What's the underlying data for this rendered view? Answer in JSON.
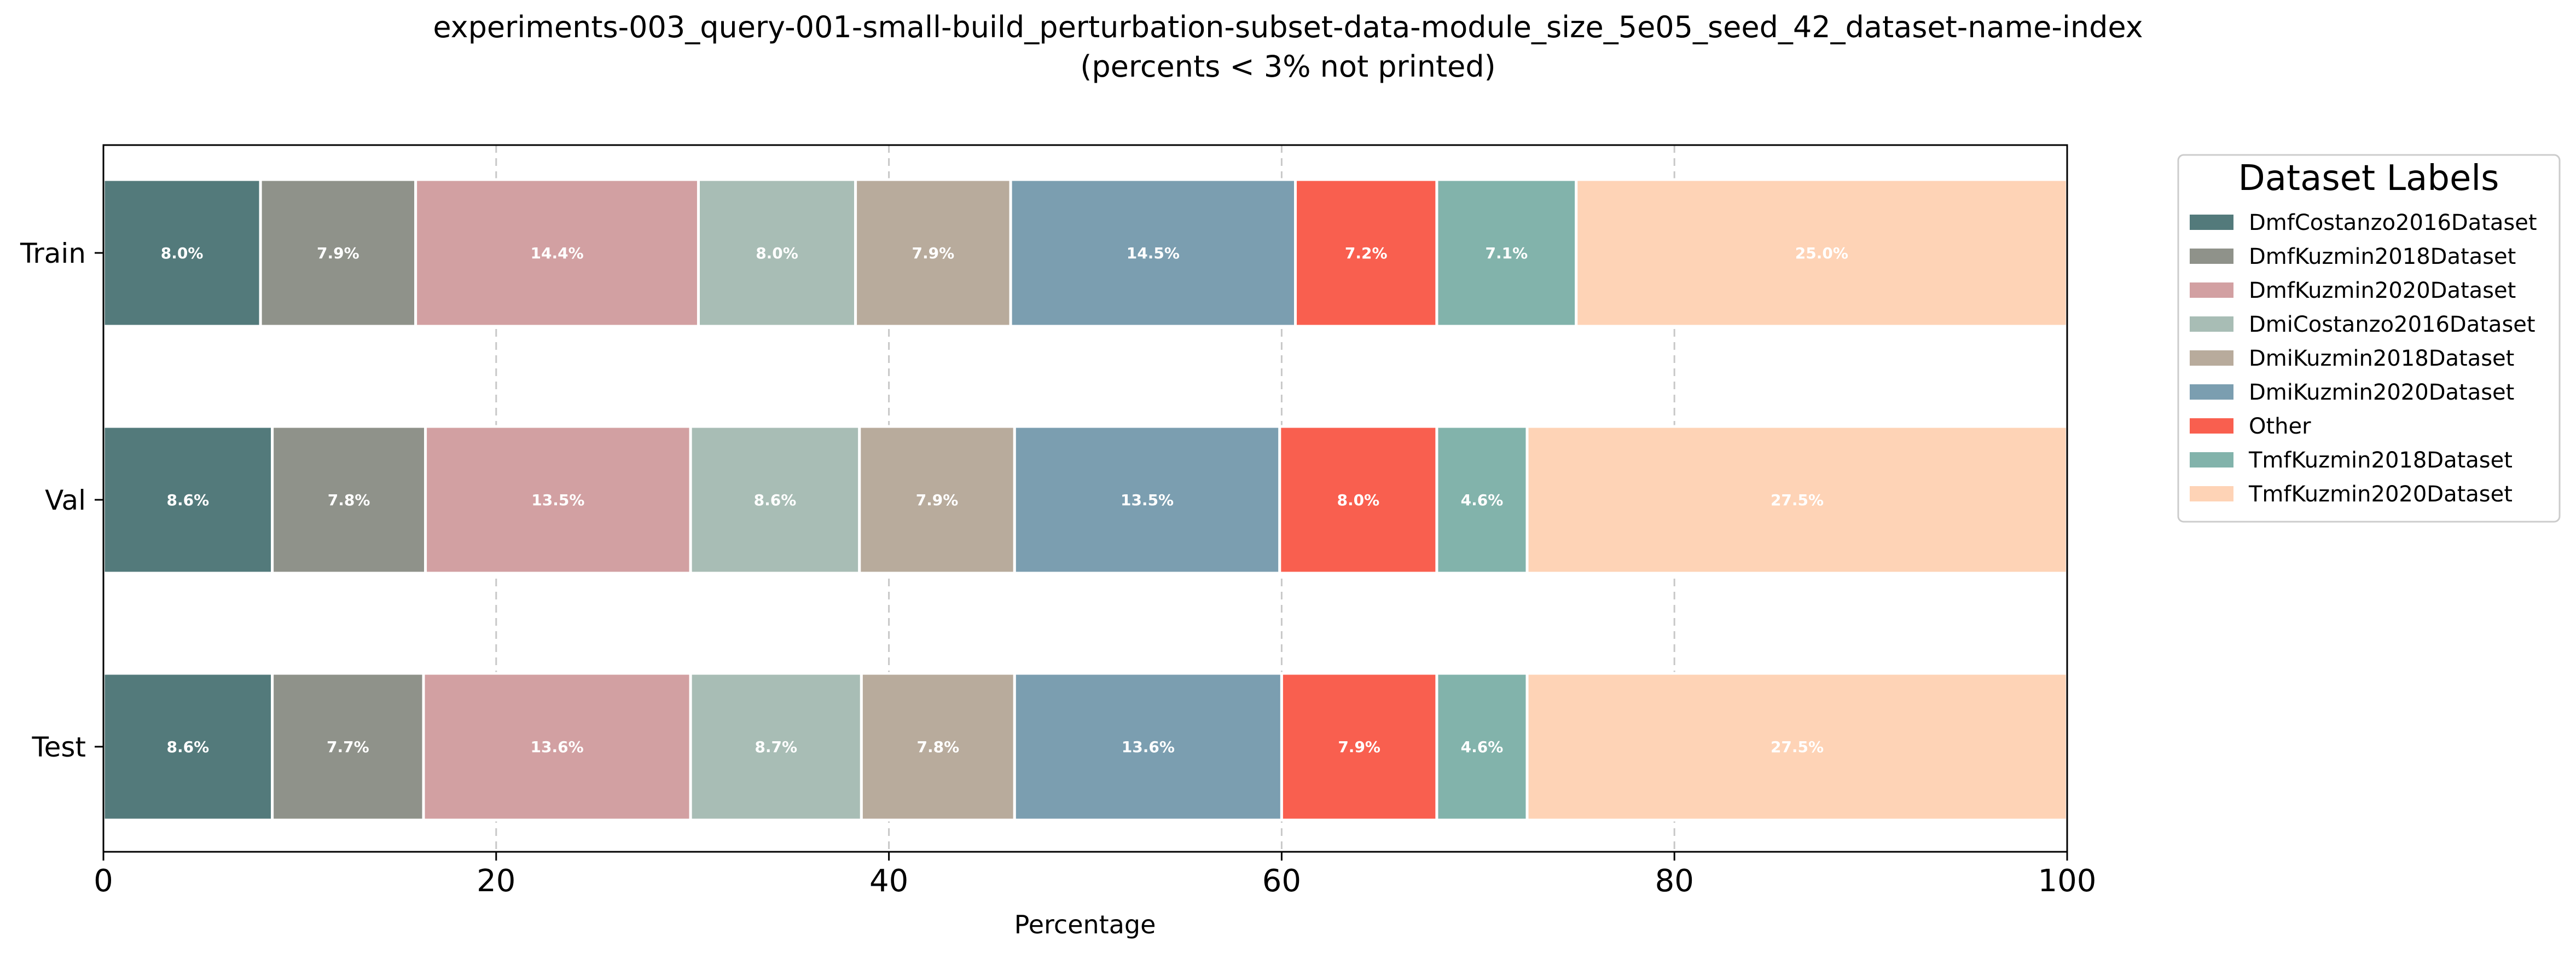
{
  "chart_data": {
    "type": "bar",
    "orientation": "horizontal",
    "stacked": true,
    "title": "experiments-003_query-001-small-build_perturbation-subset-data-module_size_5e05_seed_42_dataset-name-index",
    "subtitle": "(percents < 3% not printed)",
    "xlabel": "Percentage",
    "ylabel": "",
    "xlim": [
      0,
      100
    ],
    "x_ticks": [
      0,
      20,
      40,
      60,
      80,
      100
    ],
    "grid": "vertical dashed",
    "legend_title": "Dataset Labels",
    "legend_position": "right, outside plot",
    "categories": [
      "Train",
      "Val",
      "Test"
    ],
    "series": [
      {
        "name": "DmfCostanzo2016Dataset",
        "color": "#537a7b",
        "values": [
          8.0,
          8.6,
          8.6
        ],
        "labels": [
          "8.0%",
          "8.6%",
          "8.6%"
        ]
      },
      {
        "name": "DmfKuzmin2018Dataset",
        "color": "#8f928a",
        "values": [
          7.9,
          7.8,
          7.7
        ],
        "labels": [
          "7.9%",
          "7.8%",
          "7.7%"
        ]
      },
      {
        "name": "DmfKuzmin2020Dataset",
        "color": "#d2a0a2",
        "values": [
          14.4,
          13.5,
          13.6
        ],
        "labels": [
          "14.4%",
          "13.5%",
          "13.6%"
        ]
      },
      {
        "name": "DmiCostanzo2016Dataset",
        "color": "#a8bdb5",
        "values": [
          8.0,
          8.6,
          8.7
        ],
        "labels": [
          "8.0%",
          "8.6%",
          "8.7%"
        ]
      },
      {
        "name": "DmiKuzmin2018Dataset",
        "color": "#b8ab9c",
        "values": [
          7.9,
          7.9,
          7.8
        ],
        "labels": [
          "7.9%",
          "7.9%",
          "7.8%"
        ]
      },
      {
        "name": "DmiKuzmin2020Dataset",
        "color": "#7b9eb0",
        "values": [
          14.5,
          13.5,
          13.6
        ],
        "labels": [
          "14.5%",
          "13.5%",
          "13.6%"
        ]
      },
      {
        "name": "Other",
        "color": "#f95f4f",
        "values": [
          7.2,
          8.0,
          7.9
        ],
        "labels": [
          "7.2%",
          "8.0%",
          "7.9%"
        ]
      },
      {
        "name": "TmfKuzmin2018Dataset",
        "color": "#82b3ab",
        "values": [
          7.1,
          4.6,
          4.6
        ],
        "labels": [
          "7.1%",
          "4.6%",
          "4.6%"
        ]
      },
      {
        "name": "TmfKuzmin2020Dataset",
        "color": "#fed3b6",
        "values": [
          25.0,
          27.5,
          27.5
        ],
        "labels": [
          "25.0%",
          "27.5%",
          "27.5%"
        ]
      }
    ]
  }
}
